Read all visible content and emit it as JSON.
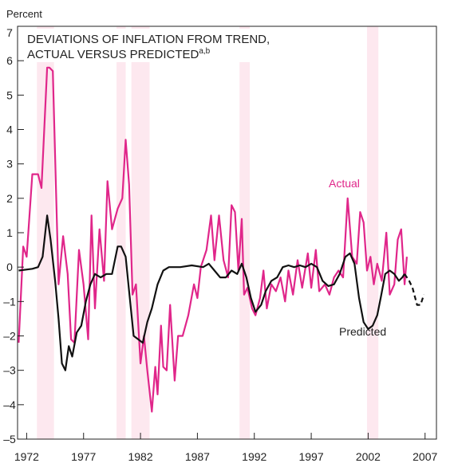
{
  "chart_data": {
    "type": "line",
    "y_axis_label": "Percent",
    "title_lines": [
      "DEVIATIONS OF INFLATION FROM TREND,",
      "ACTUAL VERSUS PREDICTED"
    ],
    "title_superscript": "a,b",
    "xlim": [
      1971.2,
      2008
    ],
    "ylim": [
      -5,
      7
    ],
    "xticks": [
      1972,
      1977,
      1982,
      1987,
      1992,
      1997,
      2002,
      2007
    ],
    "yticks": [
      {
        "value": -5,
        "label": "–5"
      },
      {
        "value": -4,
        "label": "–4"
      },
      {
        "value": -3,
        "label": "–3"
      },
      {
        "value": -2,
        "label": "–2"
      },
      {
        "value": -1,
        "label": "–1"
      },
      0,
      1,
      2,
      3,
      4,
      5,
      6,
      7
    ],
    "shading": [
      [
        1972.9,
        1974.4
      ],
      [
        1979.9,
        1980.7
      ],
      [
        1981.2,
        1982.8
      ],
      [
        1990.7,
        1991.6
      ],
      [
        2001.9,
        2002.9
      ]
    ],
    "shading_color": "#fde8ef",
    "series": [
      {
        "name": "Actual",
        "color": "#e0268a",
        "dashed": false,
        "x": [
          1971.3,
          1971.7,
          1972.0,
          1972.5,
          1973.0,
          1973.3,
          1973.8,
          1974.0,
          1974.3,
          1974.8,
          1975.2,
          1975.6,
          1975.9,
          1976.2,
          1976.6,
          1977.0,
          1977.4,
          1977.7,
          1978.0,
          1978.4,
          1978.8,
          1979.1,
          1979.5,
          1980.0,
          1980.4,
          1980.7,
          1981.0,
          1981.3,
          1981.6,
          1982.0,
          1982.3,
          1982.6,
          1983.0,
          1983.3,
          1983.5,
          1983.8,
          1984.0,
          1984.3,
          1984.6,
          1985.0,
          1985.3,
          1985.7,
          1986.2,
          1986.7,
          1987.0,
          1987.3,
          1987.8,
          1988.2,
          1988.5,
          1988.9,
          1989.3,
          1989.7,
          1990.0,
          1990.3,
          1990.6,
          1990.9,
          1991.1,
          1991.4,
          1991.8,
          1992.1,
          1992.5,
          1992.8,
          1993.1,
          1993.5,
          1993.9,
          1994.3,
          1994.7,
          1995.0,
          1995.4,
          1995.8,
          1996.2,
          1996.7,
          1997.0,
          1997.4,
          1997.7,
          1998.2,
          1998.6,
          1999.0,
          1999.4,
          1999.8,
          2000.2,
          2000.6,
          2001.0,
          2001.3,
          2001.6,
          2001.9,
          2002.2,
          2002.5,
          2002.8,
          2003.2,
          2003.6,
          2003.9,
          2004.3,
          2004.6,
          2004.9,
          2005.2,
          2005.4
        ],
        "values": [
          -2.2,
          0.6,
          0.3,
          2.7,
          2.7,
          2.3,
          5.8,
          5.8,
          5.7,
          -0.5,
          0.9,
          -0.2,
          -2.1,
          -2.2,
          0.5,
          -0.5,
          -2.1,
          1.5,
          -1.2,
          1.1,
          -0.4,
          2.5,
          1.1,
          1.7,
          2.0,
          3.7,
          2.4,
          -0.8,
          -0.5,
          -2.8,
          -2.0,
          -3.0,
          -4.2,
          -2.9,
          -3.7,
          -1.7,
          -2.9,
          -3.0,
          -1.1,
          -3.3,
          -2.0,
          -2.0,
          -1.4,
          -0.5,
          -0.9,
          0.0,
          0.5,
          1.5,
          0.2,
          1.5,
          0.2,
          -0.3,
          1.8,
          1.6,
          -0.1,
          1.4,
          -0.8,
          -0.6,
          -1.2,
          -1.4,
          -0.9,
          -0.1,
          -1.2,
          -0.5,
          -0.7,
          -0.3,
          -1.0,
          -0.1,
          -0.8,
          0.2,
          -0.6,
          0.4,
          -0.6,
          0.5,
          -0.7,
          -0.5,
          -0.8,
          -0.3,
          -0.1,
          -0.3,
          2.0,
          0.3,
          0.1,
          1.6,
          1.3,
          -0.1,
          0.3,
          -0.5,
          0.1,
          -0.4,
          1.0,
          -0.8,
          -0.5,
          0.8,
          1.1,
          -0.5,
          0.3
        ]
      },
      {
        "name": "Predicted",
        "color": "#111111",
        "dashed": false,
        "x": [
          1971.3,
          1972.5,
          1973.0,
          1973.4,
          1973.8,
          1974.1,
          1974.5,
          1974.8,
          1975.1,
          1975.4,
          1975.7,
          1976.0,
          1976.4,
          1976.8,
          1977.2,
          1977.6,
          1978.0,
          1978.5,
          1979.0,
          1979.5,
          1980.0,
          1980.3,
          1980.7,
          1981.0,
          1981.4,
          1981.8,
          1982.2,
          1982.6,
          1983.0,
          1983.5,
          1984.0,
          1984.5,
          1985.5,
          1986.5,
          1987.5,
          1988.0,
          1988.5,
          1989.0,
          1989.5,
          1990.0,
          1990.5,
          1990.9,
          1991.3,
          1991.7,
          1992.1,
          1992.6,
          1993.0,
          1993.5,
          1994.0,
          1994.5,
          1995.0,
          1995.5,
          1996.0,
          1996.5,
          1997.0,
          1997.5,
          1998.0,
          1998.5,
          1999.0,
          1999.5,
          2000.0,
          2000.4,
          2000.8,
          2001.2,
          2001.6,
          2002.0,
          2002.4,
          2002.8,
          2003.1,
          2003.5,
          2003.9,
          2004.3,
          2004.7,
          2005.0,
          2005.2
        ],
        "values": [
          -0.1,
          -0.05,
          0.0,
          0.3,
          1.5,
          0.8,
          -0.4,
          -1.5,
          -2.8,
          -3.0,
          -2.3,
          -2.6,
          -1.9,
          -1.7,
          -1.0,
          -0.5,
          -0.2,
          -0.3,
          -0.2,
          -0.2,
          0.6,
          0.6,
          0.3,
          -0.7,
          -2.0,
          -2.1,
          -2.2,
          -1.6,
          -1.2,
          -0.5,
          -0.1,
          0.0,
          0.0,
          0.05,
          0.0,
          0.1,
          -0.1,
          -0.3,
          -0.3,
          -0.1,
          -0.2,
          0.1,
          -0.3,
          -0.9,
          -1.3,
          -1.1,
          -0.7,
          -0.4,
          -0.3,
          0.0,
          0.05,
          0.0,
          0.05,
          0.0,
          0.1,
          0.0,
          -0.4,
          -0.55,
          -0.5,
          -0.2,
          0.3,
          0.4,
          0.1,
          -0.9,
          -1.6,
          -1.8,
          -1.7,
          -1.4,
          -0.9,
          -0.2,
          -0.1,
          -0.2,
          -0.4,
          -0.3,
          -0.2
        ]
      },
      {
        "name": "Predicted",
        "color": "#111111",
        "dashed": true,
        "x": [
          2005.2,
          2005.6,
          2005.9,
          2006.3,
          2006.6,
          2006.9
        ],
        "values": [
          -0.2,
          -0.4,
          -0.6,
          -1.1,
          -1.1,
          -0.8
        ]
      }
    ]
  }
}
